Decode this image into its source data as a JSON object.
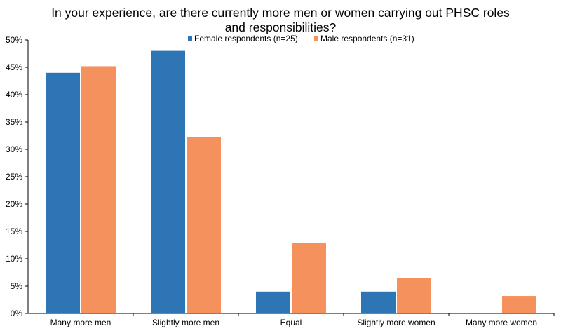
{
  "chart_data": {
    "type": "bar",
    "title_lines": [
      "In your experience, are there currently more men or women carrying out PHSC roles",
      "and responsibilities?"
    ],
    "categories": [
      "Many more men",
      "Slightly more men",
      "Equal",
      "Slightly more women",
      "Many more women"
    ],
    "series": [
      {
        "name": "Female respondents (n=25)",
        "color": "#2e75b6",
        "values": [
          44,
          48,
          4,
          4,
          0
        ]
      },
      {
        "name": "Male respondents (n=31)",
        "color": "#f4915c",
        "values": [
          45.2,
          32.3,
          12.9,
          6.5,
          3.2
        ]
      }
    ],
    "ylim": [
      0,
      50
    ],
    "yticks": [
      0,
      5,
      10,
      15,
      20,
      25,
      30,
      35,
      40,
      45,
      50
    ],
    "ytick_labels": [
      "0%",
      "5%",
      "10%",
      "15%",
      "20%",
      "25%",
      "30%",
      "35%",
      "40%",
      "45%",
      "50%"
    ],
    "xlabel": "",
    "ylabel": "",
    "legend_position": "top-center",
    "grid": false
  }
}
